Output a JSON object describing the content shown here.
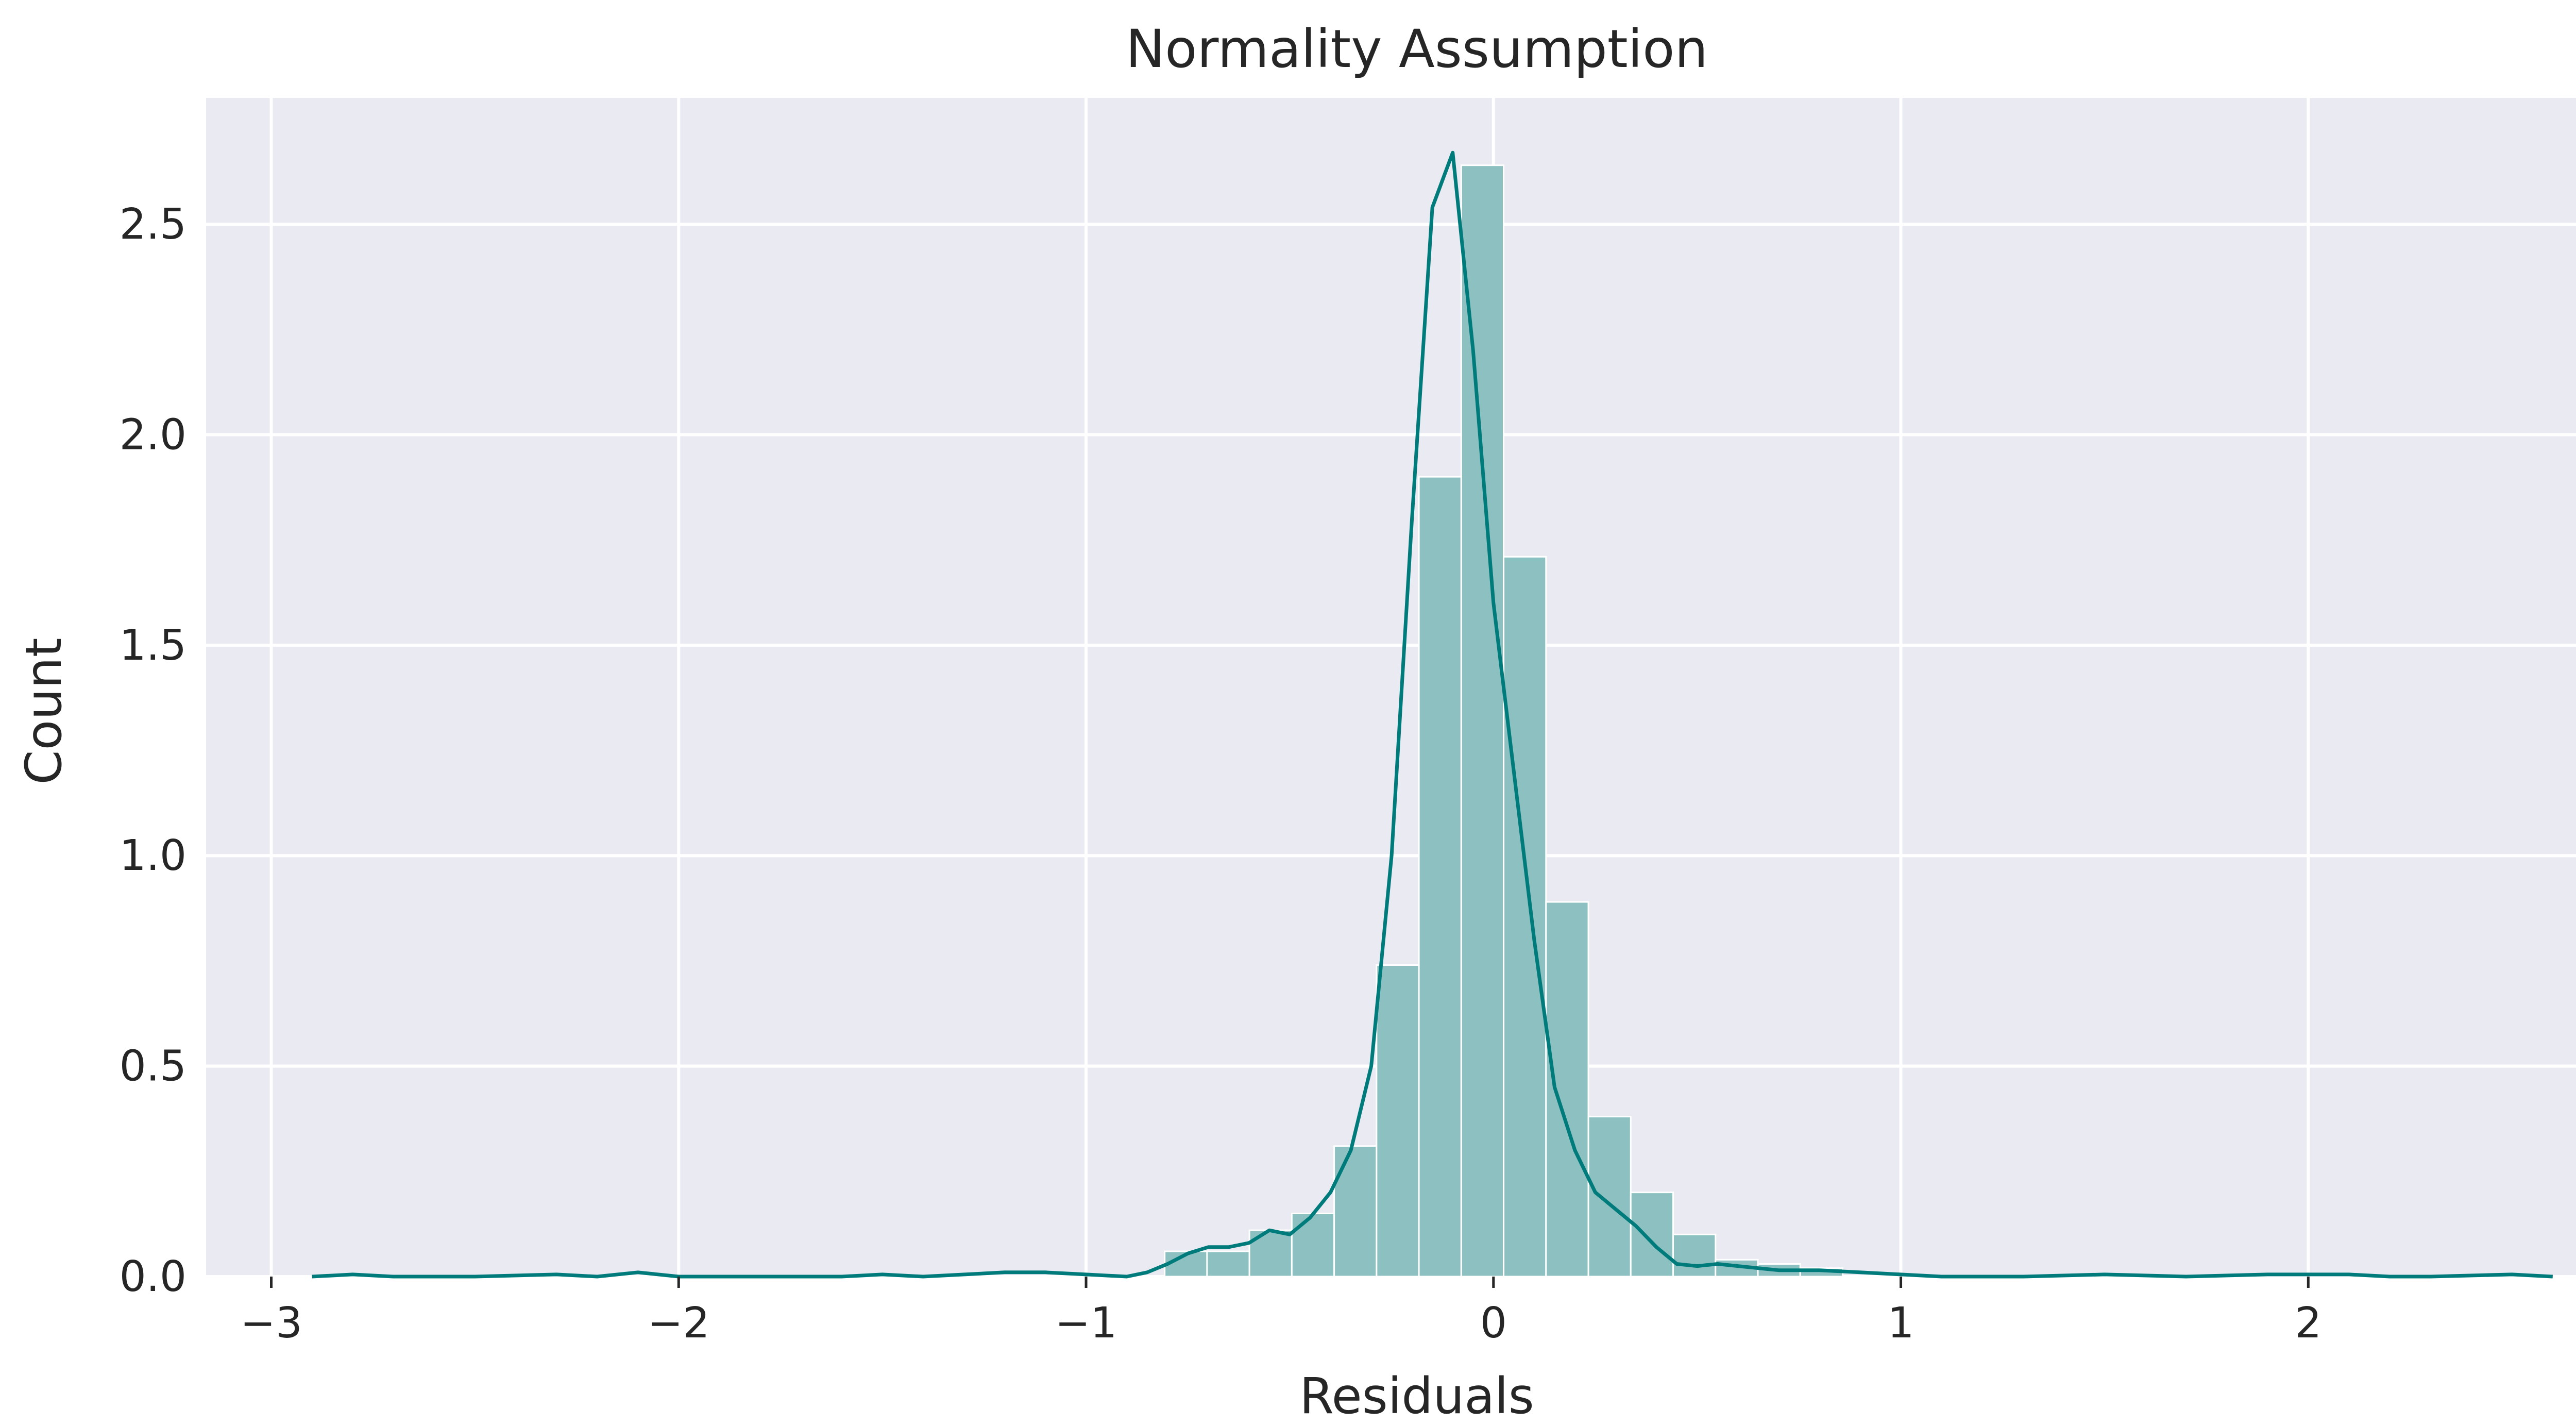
{
  "chart_data": {
    "type": "bar",
    "title": "Normality Assumption",
    "xlabel": "Residuals",
    "ylabel": "Count",
    "xlim": [
      -3.16,
      2.79
    ],
    "ylim": [
      0,
      2.8
    ],
    "xticks": [
      -3,
      -2,
      -1,
      0,
      1,
      2
    ],
    "xtick_labels": [
      "−3",
      "−2",
      "−1",
      "0",
      "1",
      "2"
    ],
    "yticks": [
      0,
      0.5,
      1.0,
      1.5,
      2.0,
      2.5
    ],
    "ytick_labels": [
      "0.0",
      "0.5",
      "1.0",
      "1.5",
      "2.0",
      "2.5"
    ],
    "grid": true,
    "legend": "none",
    "colors": {
      "bar_fill": "#8dc0c1",
      "kde_line": "#007b7b",
      "plot_background": "#eaeaf2",
      "grid": "#ffffff"
    },
    "bin_width": 0.104,
    "bins": [
      {
        "x0": -0.807,
        "x1": -0.703,
        "value": 0.06
      },
      {
        "x0": -0.703,
        "x1": -0.599,
        "value": 0.06
      },
      {
        "x0": -0.599,
        "x1": -0.495,
        "value": 0.11
      },
      {
        "x0": -0.495,
        "x1": -0.391,
        "value": 0.15
      },
      {
        "x0": -0.391,
        "x1": -0.287,
        "value": 0.31
      },
      {
        "x0": -0.287,
        "x1": -0.183,
        "value": 0.74
      },
      {
        "x0": -0.183,
        "x1": -0.079,
        "value": 1.9
      },
      {
        "x0": -0.079,
        "x1": 0.025,
        "value": 2.64
      },
      {
        "x0": 0.025,
        "x1": 0.129,
        "value": 1.71
      },
      {
        "x0": 0.129,
        "x1": 0.233,
        "value": 0.89
      },
      {
        "x0": 0.233,
        "x1": 0.337,
        "value": 0.38
      },
      {
        "x0": 0.337,
        "x1": 0.441,
        "value": 0.2
      },
      {
        "x0": 0.441,
        "x1": 0.545,
        "value": 0.1
      },
      {
        "x0": 0.545,
        "x1": 0.649,
        "value": 0.04
      },
      {
        "x0": 0.649,
        "x1": 0.753,
        "value": 0.03
      },
      {
        "x0": 0.753,
        "x1": 0.857,
        "value": 0.02
      }
    ],
    "kde": {
      "x": [
        -2.9,
        -2.8,
        -2.7,
        -2.5,
        -2.3,
        -2.2,
        -2.1,
        -2.0,
        -1.8,
        -1.6,
        -1.5,
        -1.4,
        -1.2,
        -1.1,
        -1.0,
        -0.9,
        -0.85,
        -0.8,
        -0.75,
        -0.7,
        -0.65,
        -0.6,
        -0.55,
        -0.5,
        -0.45,
        -0.4,
        -0.35,
        -0.3,
        -0.25,
        -0.2,
        -0.15,
        -0.1,
        -0.05,
        0.0,
        0.05,
        0.1,
        0.15,
        0.2,
        0.25,
        0.3,
        0.35,
        0.4,
        0.45,
        0.5,
        0.55,
        0.6,
        0.65,
        0.7,
        0.75,
        0.8,
        0.9,
        1.0,
        1.1,
        1.3,
        1.5,
        1.7,
        1.9,
        2.0,
        2.1,
        2.2,
        2.3,
        2.5,
        2.6
      ],
      "y": [
        0.0,
        0.005,
        0.0,
        0.0,
        0.005,
        0.0,
        0.01,
        0.0,
        0.0,
        0.0,
        0.005,
        0.0,
        0.01,
        0.01,
        0.005,
        0.0,
        0.01,
        0.03,
        0.055,
        0.07,
        0.07,
        0.08,
        0.11,
        0.1,
        0.14,
        0.2,
        0.3,
        0.5,
        1.0,
        1.8,
        2.54,
        2.67,
        2.2,
        1.6,
        1.2,
        0.8,
        0.45,
        0.3,
        0.2,
        0.16,
        0.12,
        0.07,
        0.03,
        0.025,
        0.03,
        0.025,
        0.02,
        0.015,
        0.015,
        0.015,
        0.01,
        0.005,
        0.0,
        0.0,
        0.005,
        0.0,
        0.005,
        0.005,
        0.005,
        0.0,
        0.0,
        0.005,
        0.0
      ]
    }
  }
}
